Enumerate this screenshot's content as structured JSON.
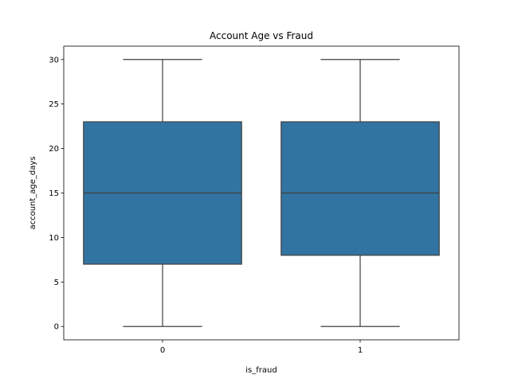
{
  "chart_data": {
    "type": "box",
    "title": "Account Age vs Fraud",
    "xlabel": "is_fraud",
    "ylabel": "account_age_days",
    "categories": [
      "0",
      "1"
    ],
    "ylim": [
      -1.5,
      31.5
    ],
    "yticks": [
      0,
      5,
      10,
      15,
      20,
      25,
      30
    ],
    "boxes": [
      {
        "category": "0",
        "whisker_low": 0,
        "q1": 7,
        "median": 15,
        "q3": 23,
        "whisker_high": 30
      },
      {
        "category": "1",
        "whisker_low": 0,
        "q1": 8,
        "median": 15,
        "q3": 23,
        "whisker_high": 30
      }
    ],
    "box_color": "#3274a1",
    "line_color": "#3f3f3f",
    "grid": false,
    "legend": "none"
  }
}
